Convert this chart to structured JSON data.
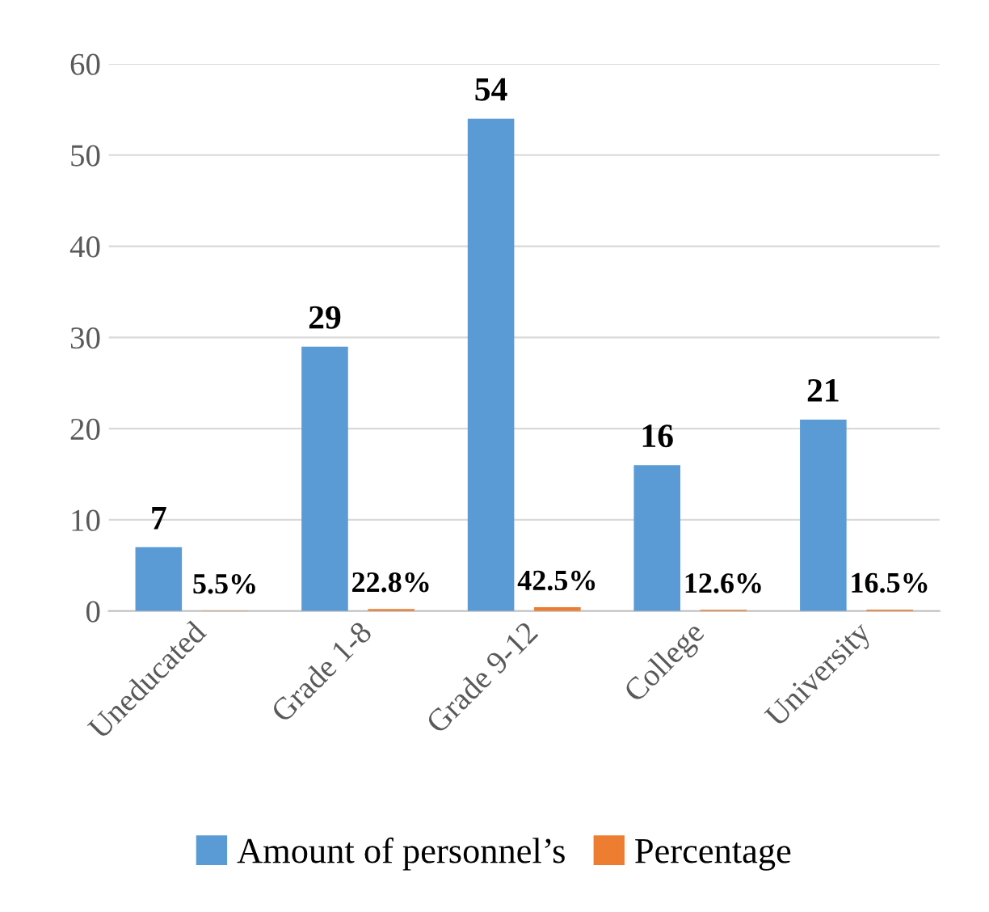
{
  "chart_data": {
    "type": "bar",
    "categories": [
      "Uneducated",
      "Grade 1-8",
      "Grade 9-12",
      "College",
      "University"
    ],
    "series": [
      {
        "name": "Amount of personnel’s",
        "color": "#5b9bd5",
        "values": [
          7,
          29,
          54,
          16,
          21
        ],
        "value_labels": [
          "7",
          "29",
          "54",
          "16",
          "21"
        ]
      },
      {
        "name": "Percentage",
        "color": "#ed7d31",
        "values": [
          0.055,
          0.228,
          0.425,
          0.126,
          0.165
        ],
        "value_labels": [
          "5.5%",
          "22.8%",
          "42.5%",
          "12.6%",
          "16.5%"
        ]
      }
    ],
    "ylim": [
      0,
      60
    ],
    "yticks": [
      0,
      10,
      20,
      30,
      40,
      50,
      60
    ],
    "grid": "y",
    "legend": "bottom"
  }
}
